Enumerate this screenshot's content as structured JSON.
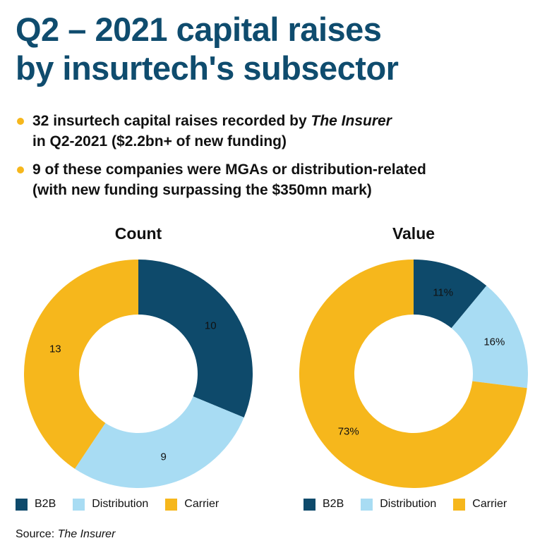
{
  "title_line1": "Q2 – 2021 capital raises",
  "title_line2": "by insurtech's subsector",
  "bullets": [
    {
      "pre": "32 insurtech capital raises recorded by ",
      "em": "The Insurer",
      "post": "",
      "line2": "in Q2-2021 ($2.2bn+ of new funding)"
    },
    {
      "pre": "9 of these companies were MGAs or distribution-related",
      "em": "",
      "post": "",
      "line2": "(with new funding surpassing the $350mn mark)"
    }
  ],
  "colors": {
    "B2B": "#0e4a6b",
    "Distribution": "#a8dcf3",
    "Carrier": "#f6b71c",
    "accent": "#0f4c6e"
  },
  "chart_data": [
    {
      "type": "pie",
      "title": "Count",
      "categories": [
        "B2B",
        "Distribution",
        "Carrier"
      ],
      "values": [
        10,
        9,
        13
      ],
      "labels": [
        "10",
        "9",
        "13"
      ],
      "legend": [
        "B2B",
        "Distribution",
        "Carrier"
      ]
    },
    {
      "type": "pie",
      "title": "Value",
      "categories": [
        "B2B",
        "Distribution",
        "Carrier"
      ],
      "values": [
        11,
        16,
        73
      ],
      "labels": [
        "11%",
        "16%",
        "73%"
      ],
      "legend": [
        "B2B",
        "Distribution",
        "Carrier"
      ]
    }
  ],
  "source": {
    "prefix": "Source: ",
    "name": "The Insurer"
  }
}
